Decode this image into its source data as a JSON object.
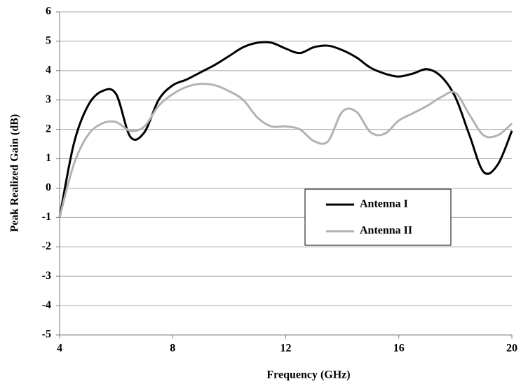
{
  "chart_data": {
    "type": "line",
    "x_label": "Frequency (GHz)",
    "y_label": "Peak Realized Gain (dB)",
    "x": [
      4,
      4.5,
      5,
      5.5,
      6,
      6.5,
      7,
      7.5,
      8,
      8.5,
      9,
      9.5,
      10,
      10.5,
      11,
      11.5,
      12,
      12.5,
      13,
      13.5,
      14,
      14.5,
      15,
      15.5,
      16,
      16.5,
      17,
      17.5,
      18,
      18.5,
      19,
      19.5,
      20
    ],
    "series": [
      {
        "name": "Antenna I",
        "color": "#000000",
        "values": [
          -1,
          1.5,
          2.8,
          3.3,
          3.2,
          1.75,
          1.9,
          3.0,
          3.5,
          3.7,
          3.95,
          4.2,
          4.5,
          4.8,
          4.95,
          4.95,
          4.75,
          4.6,
          4.8,
          4.85,
          4.7,
          4.45,
          4.1,
          3.9,
          3.8,
          3.9,
          4.05,
          3.8,
          3.1,
          1.8,
          0.55,
          0.8,
          1.95
        ]
      },
      {
        "name": "Antenna II",
        "color": "#b3b3b3",
        "values": [
          -1,
          0.8,
          1.8,
          2.2,
          2.25,
          1.95,
          2.1,
          2.8,
          3.2,
          3.45,
          3.55,
          3.5,
          3.3,
          3.0,
          2.4,
          2.1,
          2.1,
          2.0,
          1.6,
          1.6,
          2.6,
          2.6,
          1.9,
          1.85,
          2.3,
          2.55,
          2.8,
          3.1,
          3.25,
          2.5,
          1.8,
          1.8,
          2.2
        ]
      }
    ],
    "xlim": [
      4,
      20
    ],
    "xticks": [
      4,
      8,
      12,
      16,
      20
    ],
    "ylim": [
      -5,
      6
    ],
    "yticks": [
      -5,
      -4,
      -3,
      -2,
      -1,
      0,
      1,
      2,
      3,
      4,
      5,
      6
    ],
    "grid": true,
    "legend": "lower right"
  }
}
